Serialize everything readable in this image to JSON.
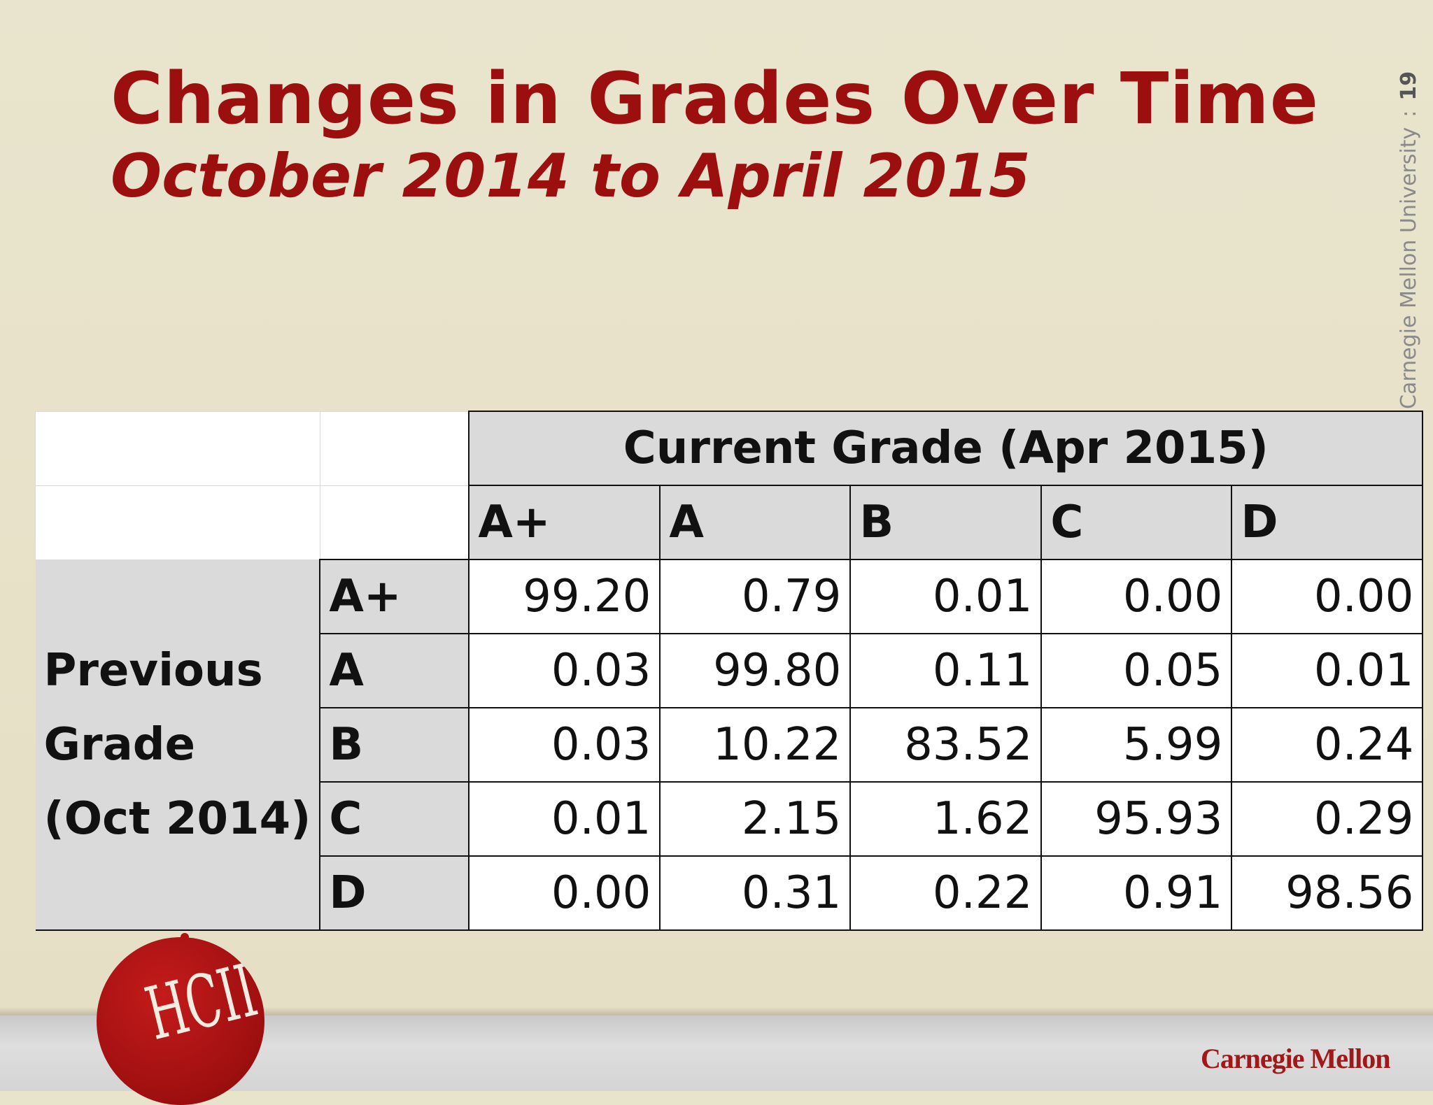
{
  "slide": {
    "title": "Changes in Grades Over Time",
    "subtitle": "October 2014 to April 2015",
    "footer_org": "Carnegie Mellon University",
    "separator": ":",
    "page_number": "19",
    "logo_text": "HCII",
    "brand_text": "Carnegie Mellon"
  },
  "table": {
    "current_header": "Current Grade (Apr 2015)",
    "columns": [
      "A+",
      "A",
      "B",
      "C",
      "D"
    ],
    "previous_label_lines": [
      "Previous",
      "Grade",
      "(Oct 2014)"
    ],
    "rows": [
      {
        "grade": "A+",
        "values": [
          "99.20",
          "0.79",
          "0.01",
          "0.00",
          "0.00"
        ]
      },
      {
        "grade": "A",
        "values": [
          "0.03",
          "99.80",
          "0.11",
          "0.05",
          "0.01"
        ]
      },
      {
        "grade": "B",
        "values": [
          "0.03",
          "10.22",
          "83.52",
          "5.99",
          "0.24"
        ]
      },
      {
        "grade": "C",
        "values": [
          "0.01",
          "2.15",
          "1.62",
          "95.93",
          "0.29"
        ]
      },
      {
        "grade": "D",
        "values": [
          "0.00",
          "0.31",
          "0.22",
          "0.91",
          "98.56"
        ]
      }
    ]
  }
}
